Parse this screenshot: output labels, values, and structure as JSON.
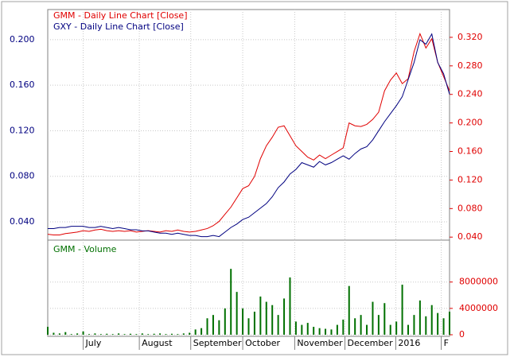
{
  "chart_data": [
    {
      "type": "line",
      "xlim": [
        0,
        68
      ],
      "ylim": [
        0.0253,
        0.2251
      ],
      "yticks": [
        {
          "value": 0.04,
          "label": "0.040"
        },
        {
          "value": 0.08,
          "label": "0.080"
        },
        {
          "value": 0.12,
          "label": "0.120"
        },
        {
          "value": 0.16,
          "label": "0.160"
        },
        {
          "value": 0.2,
          "label": "0.200"
        }
      ],
      "y2lim": [
        0.038,
        0.3567
      ],
      "y2ticks": [
        {
          "value": 0.04,
          "label": "0.040"
        },
        {
          "value": 0.08,
          "label": "0.080"
        },
        {
          "value": 0.12,
          "label": "0.120"
        },
        {
          "value": 0.16,
          "label": "0.160"
        },
        {
          "value": 0.2,
          "label": "0.200"
        },
        {
          "value": 0.24,
          "label": "0.240"
        },
        {
          "value": 0.28,
          "label": "0.280"
        },
        {
          "value": 0.32,
          "label": "0.320"
        }
      ],
      "grid": true,
      "series": [
        {
          "name": "GMM - Daily Line Chart [Close]",
          "color": "#e00000",
          "axis": "y2",
          "values": [
            0.044,
            0.043,
            0.043,
            0.045,
            0.046,
            0.047,
            0.049,
            0.048,
            0.05,
            0.051,
            0.049,
            0.048,
            0.049,
            0.048,
            0.049,
            0.047,
            0.048,
            0.049,
            0.048,
            0.047,
            0.049,
            0.048,
            0.05,
            0.048,
            0.047,
            0.048,
            0.05,
            0.052,
            0.056,
            0.062,
            0.072,
            0.082,
            0.095,
            0.108,
            0.112,
            0.125,
            0.15,
            0.168,
            0.18,
            0.194,
            0.196,
            0.182,
            0.168,
            0.16,
            0.152,
            0.148,
            0.155,
            0.15,
            0.155,
            0.16,
            0.165,
            0.2,
            0.196,
            0.195,
            0.198,
            0.205,
            0.215,
            0.245,
            0.26,
            0.27,
            0.255,
            0.262,
            0.3,
            0.325,
            0.305,
            0.318,
            0.285,
            0.265,
            0.245
          ]
        },
        {
          "name": "GXY - Daily Line Chart [Close]",
          "color": "#000080",
          "values": [
            0.034,
            0.034,
            0.035,
            0.035,
            0.036,
            0.036,
            0.036,
            0.035,
            0.035,
            0.036,
            0.035,
            0.034,
            0.035,
            0.034,
            0.033,
            0.033,
            0.032,
            0.032,
            0.031,
            0.03,
            0.03,
            0.029,
            0.03,
            0.029,
            0.028,
            0.028,
            0.027,
            0.027,
            0.028,
            0.027,
            0.031,
            0.035,
            0.038,
            0.042,
            0.044,
            0.048,
            0.052,
            0.056,
            0.062,
            0.07,
            0.075,
            0.082,
            0.086,
            0.092,
            0.09,
            0.088,
            0.093,
            0.09,
            0.092,
            0.095,
            0.098,
            0.095,
            0.1,
            0.104,
            0.106,
            0.112,
            0.12,
            0.128,
            0.135,
            0.142,
            0.15,
            0.165,
            0.18,
            0.2,
            0.196,
            0.205,
            0.18,
            0.17,
            0.152
          ]
        }
      ]
    },
    {
      "type": "bar",
      "xlim": [
        0,
        68
      ],
      "xticks": [
        {
          "value": 6,
          "label": "July"
        },
        {
          "value": 15.5,
          "label": "August"
        },
        {
          "value": 24.2,
          "label": "September"
        },
        {
          "value": 33,
          "label": "October"
        },
        {
          "value": 41.8,
          "label": "November"
        },
        {
          "value": 50.3,
          "label": "December"
        },
        {
          "value": 58.9,
          "label": "2016"
        },
        {
          "value": 66.6,
          "label": "F"
        }
      ],
      "ylim": [
        0,
        14000000
      ],
      "yticks": [
        0,
        4000000,
        8000000
      ],
      "grid": true,
      "series": [
        {
          "name": "GMM - Volume",
          "color": "#007000",
          "values": [
            1200000,
            300000,
            200000,
            400000,
            100000,
            200000,
            500000,
            100000,
            200000,
            100000,
            150000,
            100000,
            200000,
            100000,
            150000,
            100000,
            200000,
            100000,
            150000,
            200000,
            100000,
            150000,
            100000,
            200000,
            300000,
            800000,
            1000000,
            2500000,
            3000000,
            2200000,
            4000000,
            10000000,
            6500000,
            4000000,
            2500000,
            3500000,
            5800000,
            5000000,
            4500000,
            3000000,
            5500000,
            8700000,
            2000000,
            1500000,
            1800000,
            1200000,
            1000000,
            900000,
            800000,
            1500000,
            2300000,
            7400000,
            2500000,
            3000000,
            1500000,
            5000000,
            3000000,
            4800000,
            1500000,
            2000000,
            7600000,
            1500000,
            3000000,
            5200000,
            2800000,
            4500000,
            3300000,
            2500000,
            3500000
          ]
        }
      ]
    }
  ]
}
